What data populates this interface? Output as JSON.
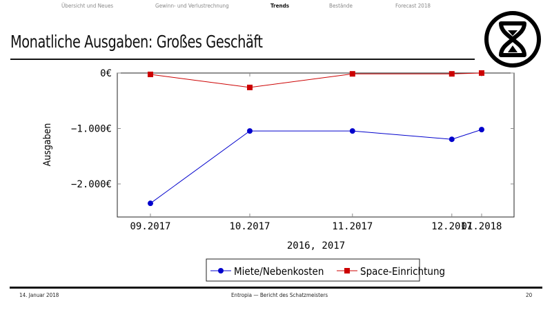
{
  "nav": {
    "items": [
      {
        "label": "Übersicht und Neues",
        "active": false
      },
      {
        "label": "Gewinn- und Verlustrechnung",
        "active": false
      },
      {
        "label": "Trends",
        "active": true
      },
      {
        "label": "Bestände",
        "active": false
      },
      {
        "label": "Forecast 2018",
        "active": false
      }
    ]
  },
  "slide": {
    "title": "Monatliche Ausgaben: Großes Geschäft",
    "logo_icon": "hourglass-circle-icon"
  },
  "footer": {
    "date": "14. Januar 2018",
    "center": "Entropia — Bericht des Schatzmeisters",
    "page": "20"
  },
  "chart_data": {
    "type": "line",
    "title": "Monatliche Ausgaben: Großes Geschäft",
    "xlabel": "2016, 2017",
    "ylabel": "Ausgaben",
    "categories": [
      "09.2017",
      "10.2017",
      "11.2017",
      "12.2017",
      "01.2018"
    ],
    "x_positions_days": [
      0,
      30,
      61,
      91,
      100
    ],
    "yticks": [
      0,
      -1000,
      -2000
    ],
    "ytick_labels": [
      "0€",
      "−1.000€",
      "−2.000€"
    ],
    "ylim": [
      -2600,
      0
    ],
    "grid": false,
    "legend_position": "bottom-center",
    "series": [
      {
        "name": "Miete/Nebenkosten",
        "color": "#0000cc",
        "marker": "circle",
        "values": [
          -2350,
          -1045,
          -1045,
          -1195,
          -1020
        ]
      },
      {
        "name": "Space-Einrichtung",
        "color": "#cc0000",
        "marker": "square",
        "values": [
          -25,
          -260,
          -15,
          -15,
          0
        ]
      }
    ]
  }
}
